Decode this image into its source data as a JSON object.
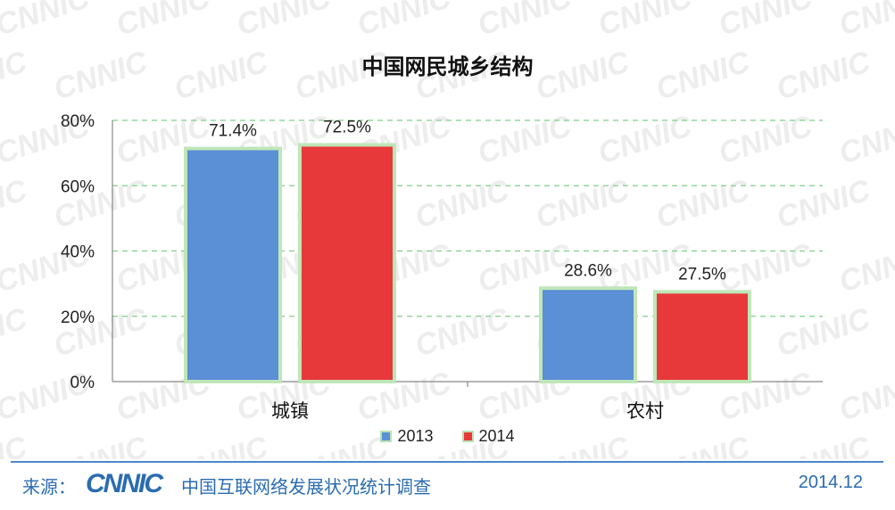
{
  "chart_data": {
    "type": "bar",
    "title": "中国网民城乡结构",
    "categories": [
      "城镇",
      "农村"
    ],
    "series": [
      {
        "name": "2013",
        "values": [
          71.4,
          28.6
        ],
        "color": "#5b8fd6"
      },
      {
        "name": "2014",
        "values": [
          72.5,
          27.5
        ],
        "color": "#e8393a"
      }
    ],
    "data_labels": [
      [
        "71.4%",
        "28.6%"
      ],
      [
        "72.5%",
        "27.5%"
      ]
    ],
    "ylim": [
      0,
      80
    ],
    "yticks": [
      "0%",
      "20%",
      "40%",
      "60%",
      "80%"
    ],
    "ytick_values": [
      0,
      20,
      40,
      60,
      80
    ],
    "gridlines": true,
    "grid_color": "#7ecf8a",
    "legend_position": "bottom"
  },
  "footer": {
    "source_label": "来源：",
    "logo_text": "CNNIC",
    "survey_name": "中国互联网络发展状况统计调查",
    "date": "2014.12"
  },
  "watermark_text": "CNNIC"
}
